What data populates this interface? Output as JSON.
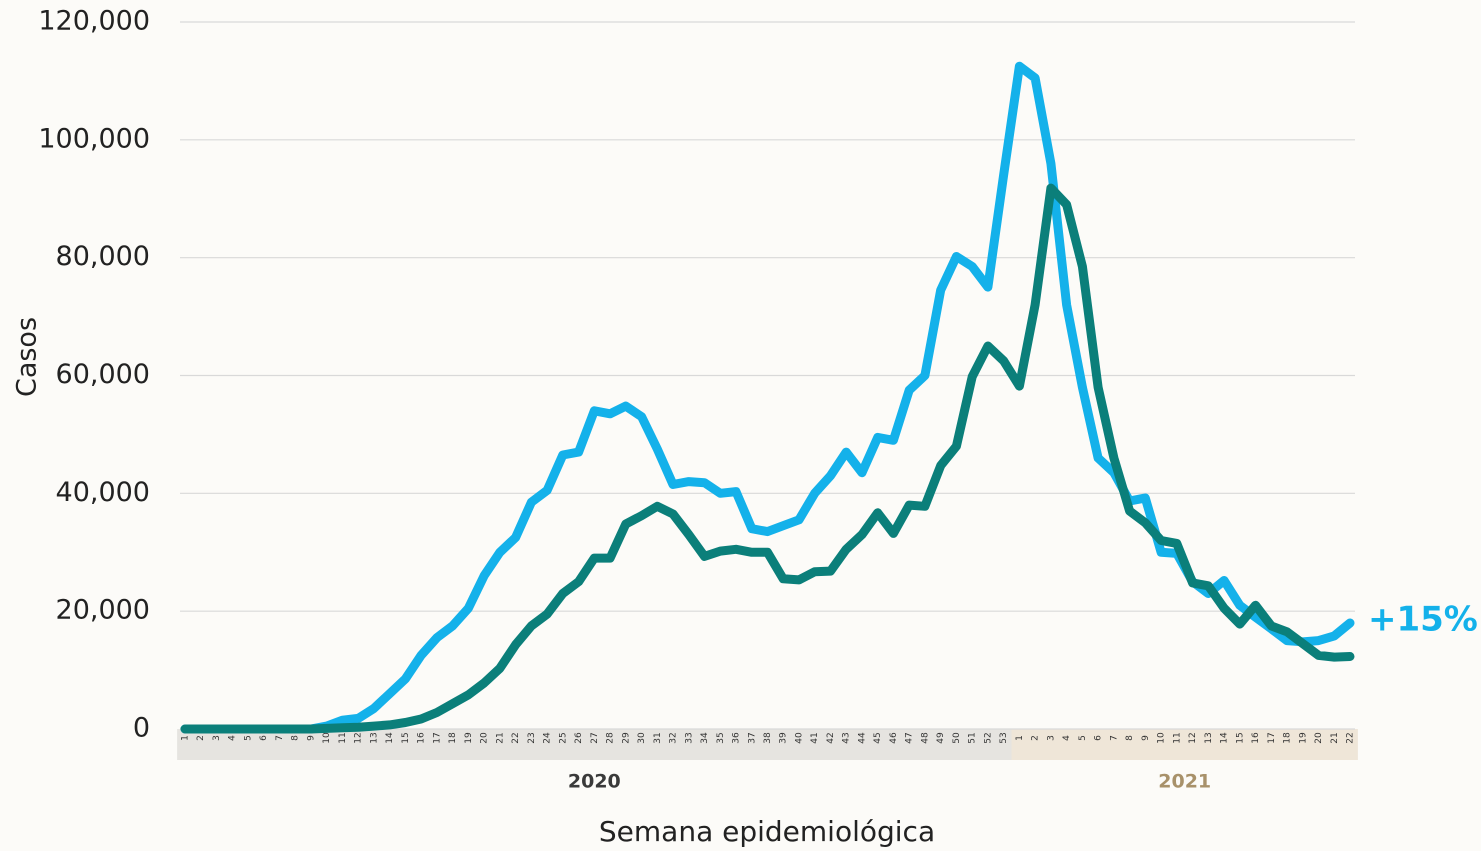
{
  "chart_data": {
    "type": "line",
    "xlabel": "Semana epidemiológica",
    "ylabel": "Casos",
    "annotation": "+15%",
    "groups": [
      "2020",
      "2021"
    ],
    "categories": [
      "1",
      "2",
      "3",
      "4",
      "5",
      "6",
      "7",
      "8",
      "9",
      "10",
      "11",
      "12",
      "13",
      "14",
      "15",
      "16",
      "17",
      "18",
      "19",
      "20",
      "21",
      "22",
      "23",
      "24",
      "25",
      "26",
      "27",
      "28",
      "29",
      "30",
      "31",
      "32",
      "33",
      "34",
      "35",
      "36",
      "37",
      "38",
      "39",
      "40",
      "41",
      "42",
      "43",
      "44",
      "45",
      "46",
      "47",
      "48",
      "49",
      "50",
      "51",
      "52",
      "53",
      "1",
      "2",
      "3",
      "4",
      "5",
      "6",
      "7",
      "8",
      "9",
      "10",
      "11",
      "12",
      "13",
      "14",
      "15",
      "16",
      "17",
      "18",
      "19",
      "20",
      "21",
      "22"
    ],
    "series": [
      {
        "color": "#14b1ea",
        "values": [
          0,
          0,
          0,
          0,
          0,
          0,
          0,
          0,
          0,
          500,
          1500,
          1800,
          3500,
          6000,
          8500,
          12500,
          15500,
          17500,
          20500,
          26000,
          30000,
          32500,
          38500,
          40500,
          46500,
          47000,
          54000,
          53500,
          54800,
          53000,
          47500,
          41500,
          42000,
          41800,
          40000,
          40300,
          34000,
          33500,
          34500,
          35500,
          40000,
          43000,
          47000,
          43500,
          49500,
          49000,
          57500,
          60000,
          74500,
          80200,
          78500,
          75000,
          94000,
          112500,
          110500,
          96000,
          72000,
          58000,
          46000,
          43500,
          38700,
          39200,
          30000,
          29800,
          25000,
          23000,
          25200,
          21000,
          19000,
          17000,
          15000,
          14800,
          15000,
          15800,
          18000
        ]
      },
      {
        "color": "#0b7f7a",
        "values": [
          0,
          0,
          0,
          0,
          0,
          0,
          0,
          0,
          0,
          100,
          200,
          300,
          500,
          700,
          1100,
          1700,
          2800,
          4300,
          5800,
          7800,
          10300,
          14300,
          17500,
          19500,
          23000,
          25000,
          29000,
          29000,
          34800,
          36200,
          37800,
          36500,
          33000,
          29300,
          30200,
          30500,
          30000,
          30000,
          25500,
          25300,
          26700,
          26800,
          30500,
          33000,
          36700,
          33200,
          38000,
          37800,
          44700,
          48000,
          59800,
          65000,
          62500,
          58200,
          72000,
          91800,
          89000,
          78500,
          58000,
          46000,
          37000,
          35000,
          32000,
          31500,
          24800,
          24300,
          20500,
          17800,
          21000,
          17500,
          16500,
          14500,
          12500,
          12200,
          12300
        ]
      }
    ],
    "ylim": [
      0,
      120000
    ],
    "yticks": [
      0,
      {
        "value": 20000,
        "label": "20,000"
      },
      {
        "value": 40000,
        "label": "40,000"
      },
      {
        "value": 60000,
        "label": "60,000"
      },
      {
        "value": 80000,
        "label": "80,000"
      },
      {
        "value": 100000,
        "label": "100,000"
      },
      {
        "value": 120000,
        "label": "120,000"
      }
    ],
    "grid": true
  }
}
